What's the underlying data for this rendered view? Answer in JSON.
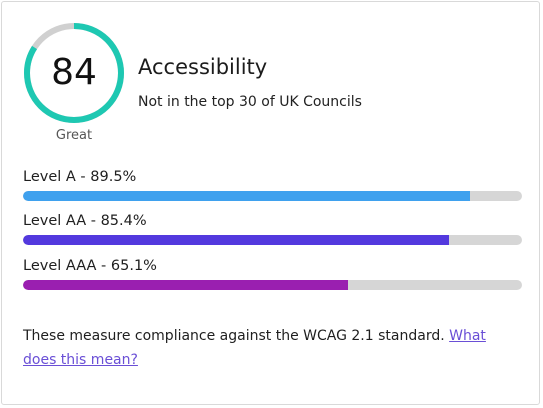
{
  "score": {
    "value": "84",
    "fraction": 0.84,
    "rating": "Great",
    "ring_color": "#1ec8b2",
    "track_color": "#d0d0d0"
  },
  "header": {
    "title": "Accessibility",
    "subtitle": "Not in the top 30 of UK Councils"
  },
  "levels": [
    {
      "label": "Level A - 89.5%",
      "percent": 89.5,
      "color": "#3fa1ee"
    },
    {
      "label": "Level AA - 85.4%",
      "percent": 85.4,
      "color": "#5339de"
    },
    {
      "label": "Level AAA - 65.1%",
      "percent": 65.1,
      "color": "#9a1fb0"
    }
  ],
  "footer": {
    "text": "These measure compliance against the WCAG 2.1 standard. ",
    "link_text": "What does this mean?"
  }
}
